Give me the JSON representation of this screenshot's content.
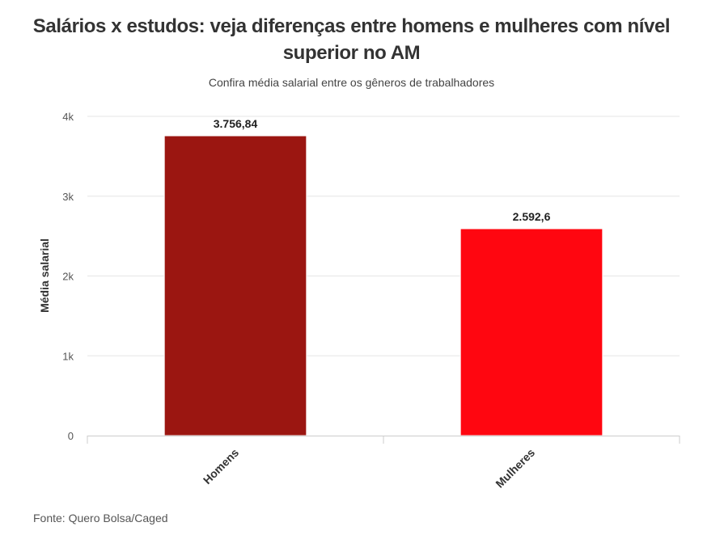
{
  "chart_data": {
    "type": "bar",
    "title": "Salários x estudos: veja diferenças entre homens e mulheres com nível superior no AM",
    "subtitle": "Confira média salarial entre os gêneros de trabalhadores",
    "ylabel": "Média salarial",
    "xlabel": "",
    "categories": [
      "Homens",
      "Mulheres"
    ],
    "values": [
      3756.84,
      2592.6
    ],
    "data_labels": [
      "3.756,84",
      "2.592,6"
    ],
    "colors": [
      "#9b1611",
      "#ff0610"
    ],
    "ylim": [
      0,
      4000
    ],
    "yticks": [
      0,
      1000,
      2000,
      3000,
      4000
    ],
    "ytick_labels": [
      "0",
      "1k",
      "2k",
      "3k",
      "4k"
    ],
    "grid": true,
    "legend": "none"
  },
  "source": "Fonte: Quero Bolsa/Caged"
}
